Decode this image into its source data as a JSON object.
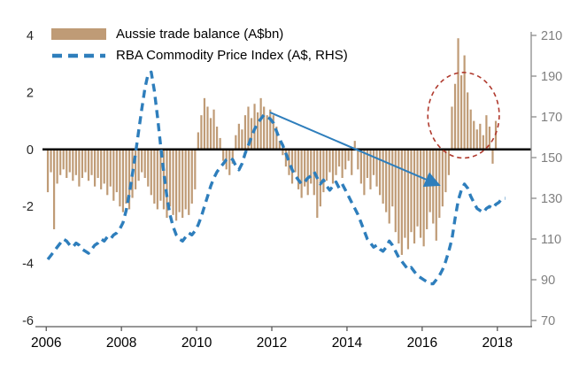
{
  "chart_data": {
    "type": "combo-bar-line",
    "title": "",
    "x_axis": {
      "min": 2005.9,
      "max": 2018.9,
      "tick_values": [
        2006,
        2008,
        2010,
        2012,
        2014,
        2016,
        2018
      ],
      "tick_labels": [
        "2006",
        "2008",
        "2010",
        "2012",
        "2014",
        "2016",
        "2018"
      ]
    },
    "left_axis": {
      "min": -6,
      "max": 4,
      "tick_values": [
        4,
        2,
        0,
        -2,
        -4,
        -6
      ]
    },
    "right_axis": {
      "min": 70,
      "max": 210,
      "tick_values": [
        210,
        190,
        170,
        150,
        130,
        110,
        90,
        70
      ]
    },
    "series": [
      {
        "name": "Aussie trade balance (A$bn)",
        "type": "bar",
        "axis": "left",
        "color": "#bf9b76",
        "start_year": 2006,
        "frequency": "monthly",
        "values": [
          -1.5,
          -0.8,
          -2.8,
          -1.2,
          -0.9,
          -0.7,
          -1.0,
          -0.8,
          -1.1,
          -0.9,
          -1.3,
          -1.0,
          -0.8,
          -1.1,
          -0.9,
          -1.3,
          -1.0,
          -1.4,
          -1.2,
          -1.6,
          -1.3,
          -1.8,
          -1.5,
          -2.0,
          -2.2,
          -1.9,
          -2.1,
          -1.7,
          -1.4,
          -1.1,
          -0.8,
          -1.0,
          -1.3,
          -1.6,
          -1.9,
          -2.1,
          -1.8,
          -2.1,
          -2.4,
          -2.0,
          -2.3,
          -2.5,
          -2.2,
          -2.4,
          -2.1,
          -2.3,
          -1.9,
          -1.4,
          0.6,
          1.2,
          1.8,
          1.5,
          1.1,
          1.4,
          0.8,
          0.4,
          -0.4,
          -0.7,
          -0.9,
          -0.5,
          0.5,
          0.9,
          0.7,
          1.2,
          1.5,
          1.1,
          1.6,
          1.3,
          1.8,
          1.5,
          1.2,
          1.4,
          1.2,
          0.8,
          0.3,
          -0.2,
          -0.6,
          -0.9,
          -1.2,
          -0.8,
          -1.4,
          -1.7,
          -1.3,
          -1.6,
          -1.2,
          -1.6,
          -2.4,
          -2.0,
          -1.5,
          -1.1,
          -0.8,
          -1.2,
          -0.9,
          -0.6,
          -1.0,
          -0.7,
          -0.4,
          -0.9,
          0.3,
          -0.7,
          -1.2,
          -1.6,
          -1.0,
          -1.4,
          -0.9,
          -1.3,
          -1.6,
          -1.9,
          -2.2,
          -2.6,
          -2.0,
          -2.9,
          -3.3,
          -3.7,
          -3.1,
          -3.5,
          -2.9,
          -3.3,
          -2.7,
          -3.1,
          -3.4,
          -2.8,
          -2.2,
          -2.6,
          -3.2,
          -2.4,
          -2.0,
          -1.5,
          -0.9,
          1.5,
          2.3,
          3.9,
          2.6,
          3.3,
          2.0,
          1.4,
          1.0,
          0.7,
          0.9,
          0.5,
          1.2,
          0.8,
          -0.5,
          1.0
        ]
      },
      {
        "name": "RBA Commodity Price Index (A$, RHS)",
        "type": "line",
        "axis": "right",
        "dashed": true,
        "color": "#2e7ebc",
        "start_year": 2006,
        "frequency": "monthly",
        "values": [
          100,
          102,
          104,
          106,
          108,
          110,
          109,
          107,
          106,
          108,
          107,
          105,
          104,
          103,
          105,
          107,
          108,
          110,
          109,
          111,
          110,
          112,
          113,
          115,
          118,
          124,
          132,
          142,
          152,
          163,
          174,
          184,
          191,
          192,
          183,
          170,
          156,
          143,
          131,
          122,
          116,
          112,
          110,
          109,
          111,
          113,
          112,
          114,
          117,
          121,
          126,
          131,
          136,
          140,
          143,
          145,
          147,
          149,
          150,
          149,
          146,
          144,
          147,
          152,
          156,
          160,
          164,
          167,
          169,
          171,
          170,
          169,
          167,
          163,
          159,
          156,
          152,
          148,
          144,
          141,
          139,
          137,
          138,
          140,
          141,
          143,
          140,
          137,
          139,
          136,
          134,
          136,
          138,
          135,
          137,
          134,
          131,
          128,
          125,
          122,
          118,
          114,
          110,
          108,
          106,
          107,
          105,
          104,
          106,
          109,
          107,
          104,
          101,
          99,
          97,
          95,
          96,
          94,
          92,
          91,
          90,
          89,
          88,
          88,
          90,
          92,
          95,
          99,
          104,
          110,
          120,
          129,
          134,
          137,
          135,
          131,
          128,
          125,
          124,
          123,
          125,
          126,
          125,
          127,
          128,
          130,
          130
        ]
      }
    ],
    "annotations": {
      "highlight_ellipse": {
        "cx": 2017.1,
        "cy": 1.2,
        "rx": 0.95,
        "ry": 1.5,
        "color": "#b03a2e"
      },
      "trend_arrow": {
        "x1": 2011.95,
        "y1": 1.3,
        "x2": 2016.45,
        "y2": -1.25,
        "color": "#2e7ebc"
      }
    },
    "layout": {
      "grid": false,
      "legend_position": "top-left-inside",
      "zero_line": true
    }
  },
  "legend": {
    "items": [
      {
        "label": "Aussie trade balance (A$bn)",
        "swatch": "bar"
      },
      {
        "label": "RBA Commodity Price Index (A$, RHS)",
        "swatch": "dashed-line"
      }
    ]
  },
  "colors": {
    "bar": "#bf9b76",
    "line": "#2e7ebc",
    "annotation": "#b03a2e",
    "right_axis_text": "#7f7f7f",
    "left_axis_text": "#262626",
    "x_axis_text": "#000000",
    "axis_line": "#8c8c8c",
    "zero_line": "#000000"
  }
}
